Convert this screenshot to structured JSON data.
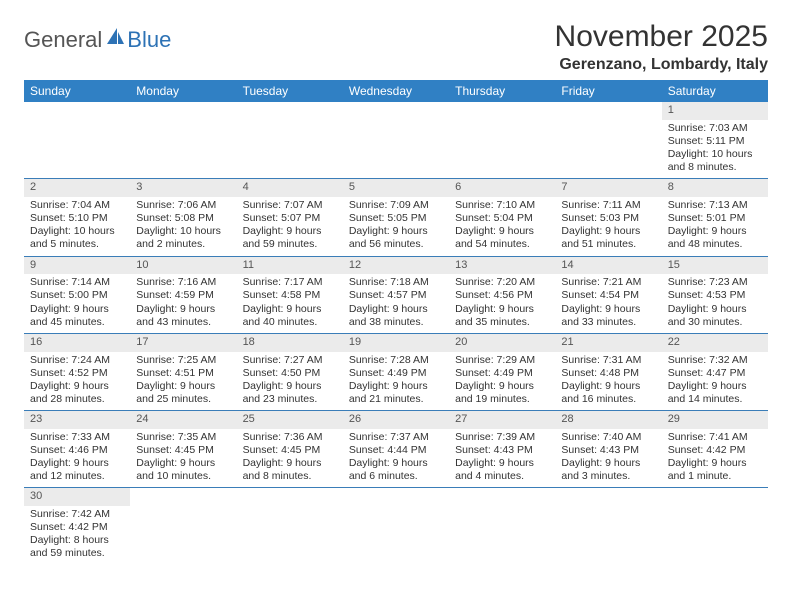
{
  "logo": {
    "text1": "General",
    "text2": "Blue"
  },
  "title": "November 2025",
  "location": "Gerenzano, Lombardy, Italy",
  "colors": {
    "header_bg": "#3080c4",
    "header_text": "#ffffff",
    "daynum_bg": "#ebebeb",
    "daynum_text": "#555555",
    "row_divider": "#3a7db8",
    "body_text": "#333333",
    "logo_gray": "#555555",
    "logo_blue": "#2d72b5",
    "page_bg": "#ffffff"
  },
  "typography": {
    "title_fontsize": 30,
    "location_fontsize": 16,
    "header_fontsize": 12,
    "cell_fontsize": 10.5,
    "font_family": "Arial"
  },
  "day_headers": [
    "Sunday",
    "Monday",
    "Tuesday",
    "Wednesday",
    "Thursday",
    "Friday",
    "Saturday"
  ],
  "weeks": [
    [
      {
        "n": "",
        "lines": [
          "",
          "",
          "",
          ""
        ]
      },
      {
        "n": "",
        "lines": [
          "",
          "",
          "",
          ""
        ]
      },
      {
        "n": "",
        "lines": [
          "",
          "",
          "",
          ""
        ]
      },
      {
        "n": "",
        "lines": [
          "",
          "",
          "",
          ""
        ]
      },
      {
        "n": "",
        "lines": [
          "",
          "",
          "",
          ""
        ]
      },
      {
        "n": "",
        "lines": [
          "",
          "",
          "",
          ""
        ]
      },
      {
        "n": "1",
        "lines": [
          "Sunrise: 7:03 AM",
          "Sunset: 5:11 PM",
          "Daylight: 10 hours",
          "and 8 minutes."
        ]
      }
    ],
    [
      {
        "n": "2",
        "lines": [
          "Sunrise: 7:04 AM",
          "Sunset: 5:10 PM",
          "Daylight: 10 hours",
          "and 5 minutes."
        ]
      },
      {
        "n": "3",
        "lines": [
          "Sunrise: 7:06 AM",
          "Sunset: 5:08 PM",
          "Daylight: 10 hours",
          "and 2 minutes."
        ]
      },
      {
        "n": "4",
        "lines": [
          "Sunrise: 7:07 AM",
          "Sunset: 5:07 PM",
          "Daylight: 9 hours",
          "and 59 minutes."
        ]
      },
      {
        "n": "5",
        "lines": [
          "Sunrise: 7:09 AM",
          "Sunset: 5:05 PM",
          "Daylight: 9 hours",
          "and 56 minutes."
        ]
      },
      {
        "n": "6",
        "lines": [
          "Sunrise: 7:10 AM",
          "Sunset: 5:04 PM",
          "Daylight: 9 hours",
          "and 54 minutes."
        ]
      },
      {
        "n": "7",
        "lines": [
          "Sunrise: 7:11 AM",
          "Sunset: 5:03 PM",
          "Daylight: 9 hours",
          "and 51 minutes."
        ]
      },
      {
        "n": "8",
        "lines": [
          "Sunrise: 7:13 AM",
          "Sunset: 5:01 PM",
          "Daylight: 9 hours",
          "and 48 minutes."
        ]
      }
    ],
    [
      {
        "n": "9",
        "lines": [
          "Sunrise: 7:14 AM",
          "Sunset: 5:00 PM",
          "Daylight: 9 hours",
          "and 45 minutes."
        ]
      },
      {
        "n": "10",
        "lines": [
          "Sunrise: 7:16 AM",
          "Sunset: 4:59 PM",
          "Daylight: 9 hours",
          "and 43 minutes."
        ]
      },
      {
        "n": "11",
        "lines": [
          "Sunrise: 7:17 AM",
          "Sunset: 4:58 PM",
          "Daylight: 9 hours",
          "and 40 minutes."
        ]
      },
      {
        "n": "12",
        "lines": [
          "Sunrise: 7:18 AM",
          "Sunset: 4:57 PM",
          "Daylight: 9 hours",
          "and 38 minutes."
        ]
      },
      {
        "n": "13",
        "lines": [
          "Sunrise: 7:20 AM",
          "Sunset: 4:56 PM",
          "Daylight: 9 hours",
          "and 35 minutes."
        ]
      },
      {
        "n": "14",
        "lines": [
          "Sunrise: 7:21 AM",
          "Sunset: 4:54 PM",
          "Daylight: 9 hours",
          "and 33 minutes."
        ]
      },
      {
        "n": "15",
        "lines": [
          "Sunrise: 7:23 AM",
          "Sunset: 4:53 PM",
          "Daylight: 9 hours",
          "and 30 minutes."
        ]
      }
    ],
    [
      {
        "n": "16",
        "lines": [
          "Sunrise: 7:24 AM",
          "Sunset: 4:52 PM",
          "Daylight: 9 hours",
          "and 28 minutes."
        ]
      },
      {
        "n": "17",
        "lines": [
          "Sunrise: 7:25 AM",
          "Sunset: 4:51 PM",
          "Daylight: 9 hours",
          "and 25 minutes."
        ]
      },
      {
        "n": "18",
        "lines": [
          "Sunrise: 7:27 AM",
          "Sunset: 4:50 PM",
          "Daylight: 9 hours",
          "and 23 minutes."
        ]
      },
      {
        "n": "19",
        "lines": [
          "Sunrise: 7:28 AM",
          "Sunset: 4:49 PM",
          "Daylight: 9 hours",
          "and 21 minutes."
        ]
      },
      {
        "n": "20",
        "lines": [
          "Sunrise: 7:29 AM",
          "Sunset: 4:49 PM",
          "Daylight: 9 hours",
          "and 19 minutes."
        ]
      },
      {
        "n": "21",
        "lines": [
          "Sunrise: 7:31 AM",
          "Sunset: 4:48 PM",
          "Daylight: 9 hours",
          "and 16 minutes."
        ]
      },
      {
        "n": "22",
        "lines": [
          "Sunrise: 7:32 AM",
          "Sunset: 4:47 PM",
          "Daylight: 9 hours",
          "and 14 minutes."
        ]
      }
    ],
    [
      {
        "n": "23",
        "lines": [
          "Sunrise: 7:33 AM",
          "Sunset: 4:46 PM",
          "Daylight: 9 hours",
          "and 12 minutes."
        ]
      },
      {
        "n": "24",
        "lines": [
          "Sunrise: 7:35 AM",
          "Sunset: 4:45 PM",
          "Daylight: 9 hours",
          "and 10 minutes."
        ]
      },
      {
        "n": "25",
        "lines": [
          "Sunrise: 7:36 AM",
          "Sunset: 4:45 PM",
          "Daylight: 9 hours",
          "and 8 minutes."
        ]
      },
      {
        "n": "26",
        "lines": [
          "Sunrise: 7:37 AM",
          "Sunset: 4:44 PM",
          "Daylight: 9 hours",
          "and 6 minutes."
        ]
      },
      {
        "n": "27",
        "lines": [
          "Sunrise: 7:39 AM",
          "Sunset: 4:43 PM",
          "Daylight: 9 hours",
          "and 4 minutes."
        ]
      },
      {
        "n": "28",
        "lines": [
          "Sunrise: 7:40 AM",
          "Sunset: 4:43 PM",
          "Daylight: 9 hours",
          "and 3 minutes."
        ]
      },
      {
        "n": "29",
        "lines": [
          "Sunrise: 7:41 AM",
          "Sunset: 4:42 PM",
          "Daylight: 9 hours",
          "and 1 minute."
        ]
      }
    ],
    [
      {
        "n": "30",
        "lines": [
          "Sunrise: 7:42 AM",
          "Sunset: 4:42 PM",
          "Daylight: 8 hours",
          "and 59 minutes."
        ]
      },
      {
        "n": "",
        "lines": [
          "",
          "",
          "",
          ""
        ]
      },
      {
        "n": "",
        "lines": [
          "",
          "",
          "",
          ""
        ]
      },
      {
        "n": "",
        "lines": [
          "",
          "",
          "",
          ""
        ]
      },
      {
        "n": "",
        "lines": [
          "",
          "",
          "",
          ""
        ]
      },
      {
        "n": "",
        "lines": [
          "",
          "",
          "",
          ""
        ]
      },
      {
        "n": "",
        "lines": [
          "",
          "",
          "",
          ""
        ]
      }
    ]
  ]
}
